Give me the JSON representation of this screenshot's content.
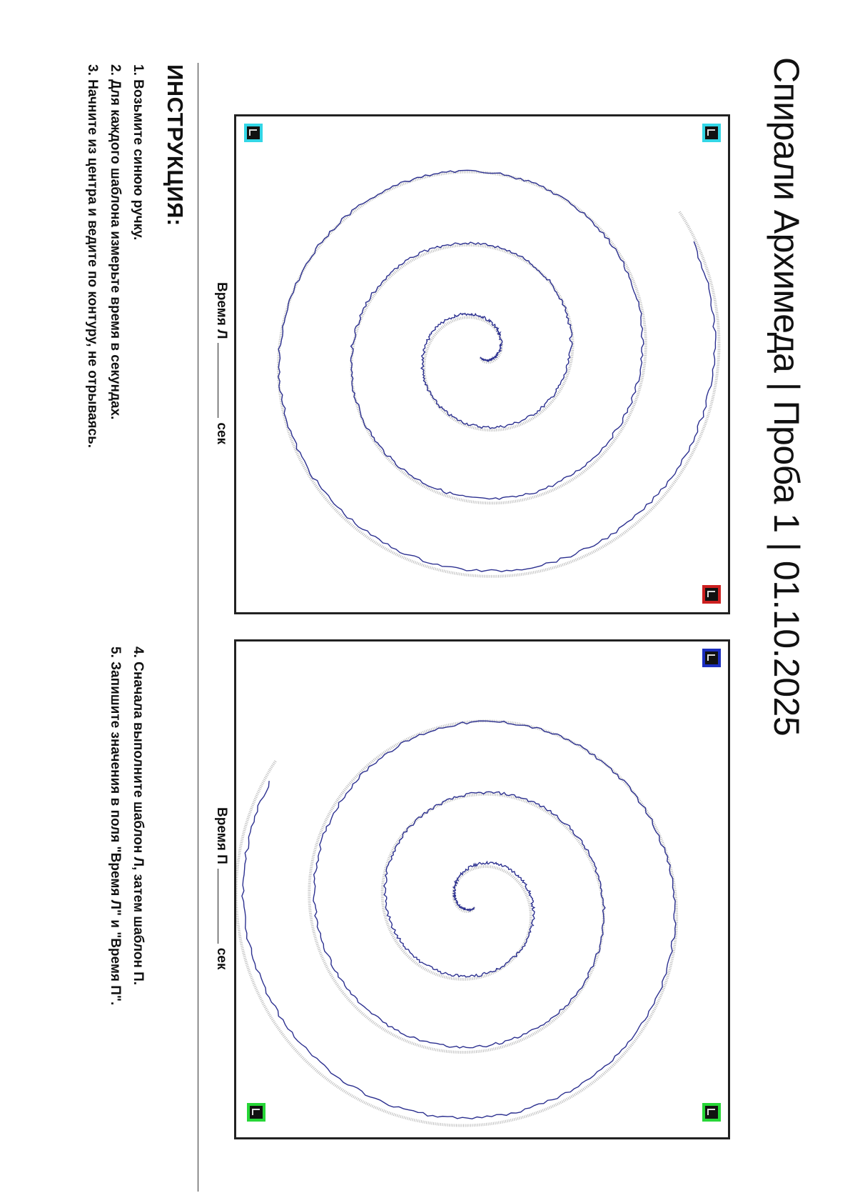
{
  "header": {
    "title": "Спирали Архимеда | Проба 1 | 01.10.2025"
  },
  "templates": [
    {
      "id": "left",
      "time_label": "Время Л",
      "unit": "сек",
      "markers": [
        {
          "corner": "top-left",
          "color": "#33d6e6",
          "glyph": "L-corner-icon"
        },
        {
          "corner": "top-right",
          "color": "#cc2020",
          "glyph": "L-corner-icon"
        },
        {
          "corner": "bottom-left",
          "color": "#33d6e6",
          "glyph": "L-corner-icon"
        }
      ],
      "guide_color": "#bdbdbd",
      "trace_color": "#2b2f8f"
    },
    {
      "id": "right",
      "time_label": "Время П",
      "unit": "сек",
      "markers": [
        {
          "corner": "top-left",
          "color": "#1c2fc0",
          "glyph": "L-corner-icon"
        },
        {
          "corner": "top-right",
          "color": "#27d637",
          "glyph": "L-corner-icon"
        },
        {
          "corner": "bottom-right",
          "color": "#27d637",
          "glyph": "L-corner-icon"
        }
      ],
      "guide_color": "#bdbdbd",
      "trace_color": "#2b2f8f"
    }
  ],
  "instructions": {
    "heading": "ИНСТРУКЦИЯ:",
    "items": [
      "1. Возьмите синюю ручку.",
      "2. Для каждого шаблона измерьте время в секундах.",
      "3. Начните из центра и ведите по контуру, не отрываясь.",
      "4. Сначала выполните шаблон Л, затем шаблон П.",
      "5. Запишите значения в поля \"Время Л\" и \"Время П\"."
    ]
  }
}
